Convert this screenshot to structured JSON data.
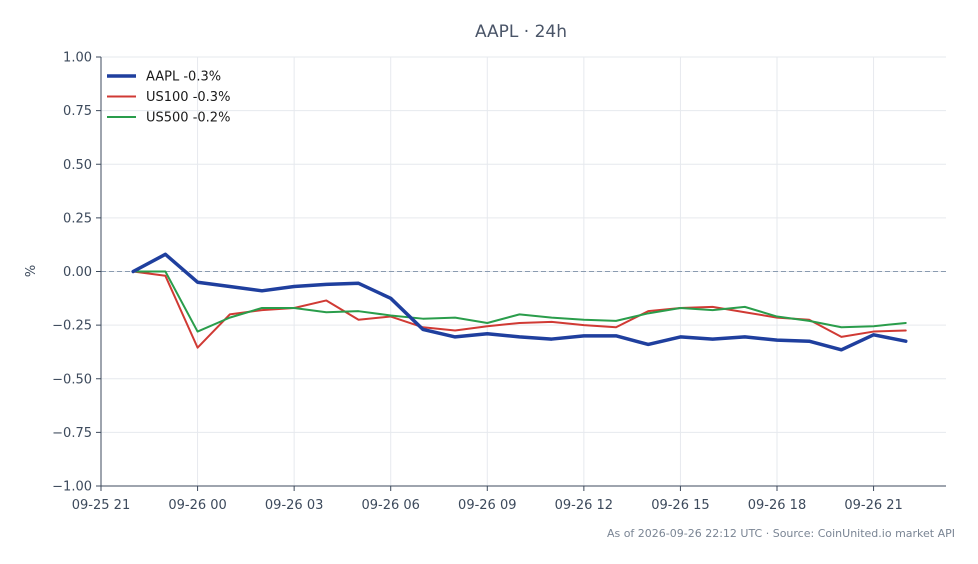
{
  "chart_data": {
    "type": "line",
    "title": "AAPL · 24h",
    "ylabel": "%",
    "xlabel": "",
    "ylim": [
      -1.0,
      1.0
    ],
    "yticks": [
      -1.0,
      -0.75,
      -0.5,
      -0.25,
      0.0,
      0.25,
      0.5,
      0.75,
      1.0
    ],
    "ytick_labels": [
      "−1.00",
      "−0.75",
      "−0.50",
      "−0.25",
      "0.00",
      "0.25",
      "0.50",
      "0.75",
      "1.00"
    ],
    "xlim": [
      "2026-09-25 21:00",
      "2026-09-26 23:15"
    ],
    "xtick_values": [
      "2026-09-25 21:00",
      "2026-09-26 00:00",
      "2026-09-26 03:00",
      "2026-09-26 06:00",
      "2026-09-26 09:00",
      "2026-09-26 12:00",
      "2026-09-26 15:00",
      "2026-09-26 18:00",
      "2026-09-26 21:00"
    ],
    "xtick_labels": [
      "09-25 21",
      "09-26 00",
      "09-26 03",
      "09-26 06",
      "09-26 09",
      "09-26 12",
      "09-26 15",
      "09-26 18",
      "09-26 21"
    ],
    "x": [
      "2026-09-25 22:00",
      "2026-09-25 23:00",
      "2026-09-26 00:00",
      "2026-09-26 01:00",
      "2026-09-26 02:00",
      "2026-09-26 03:00",
      "2026-09-26 04:00",
      "2026-09-26 05:00",
      "2026-09-26 06:00",
      "2026-09-26 07:00",
      "2026-09-26 08:00",
      "2026-09-26 09:00",
      "2026-09-26 10:00",
      "2026-09-26 11:00",
      "2026-09-26 12:00",
      "2026-09-26 13:00",
      "2026-09-26 14:00",
      "2026-09-26 15:00",
      "2026-09-26 16:00",
      "2026-09-26 17:00",
      "2026-09-26 18:00",
      "2026-09-26 19:00",
      "2026-09-26 20:00",
      "2026-09-26 21:00",
      "2026-09-26 22:00"
    ],
    "series": [
      {
        "name": "AAPL -0.3%",
        "color": "#1f3f9e",
        "values": [
          0.0,
          0.08,
          -0.05,
          -0.07,
          -0.09,
          -0.07,
          -0.06,
          -0.055,
          -0.125,
          -0.27,
          -0.305,
          -0.29,
          -0.305,
          -0.315,
          -0.3,
          -0.3,
          -0.34,
          -0.305,
          -0.315,
          -0.305,
          -0.32,
          -0.325,
          -0.365,
          -0.295,
          -0.325
        ]
      },
      {
        "name": "US100 -0.3%",
        "color": "#d03a34",
        "values": [
          0.0,
          -0.02,
          -0.355,
          -0.2,
          -0.18,
          -0.17,
          -0.135,
          -0.225,
          -0.21,
          -0.26,
          -0.275,
          -0.255,
          -0.24,
          -0.235,
          -0.25,
          -0.26,
          -0.185,
          -0.17,
          -0.165,
          -0.19,
          -0.215,
          -0.225,
          -0.305,
          -0.28,
          -0.275
        ]
      },
      {
        "name": "US500 -0.2%",
        "color": "#2a9d4b",
        "values": [
          0.0,
          0.0,
          -0.28,
          -0.215,
          -0.17,
          -0.17,
          -0.19,
          -0.185,
          -0.205,
          -0.22,
          -0.215,
          -0.24,
          -0.2,
          -0.215,
          -0.225,
          -0.23,
          -0.195,
          -0.17,
          -0.18,
          -0.165,
          -0.21,
          -0.23,
          -0.26,
          -0.255,
          -0.24
        ]
      }
    ],
    "zero_line": {
      "value": 0.0,
      "style": "dashed",
      "color": "#8a9bb0"
    },
    "grid": true,
    "legend_position": "top-left"
  },
  "footer": {
    "text": "As of 2026-09-26 22:12 UTC · Source: CoinUnited.io market API"
  }
}
